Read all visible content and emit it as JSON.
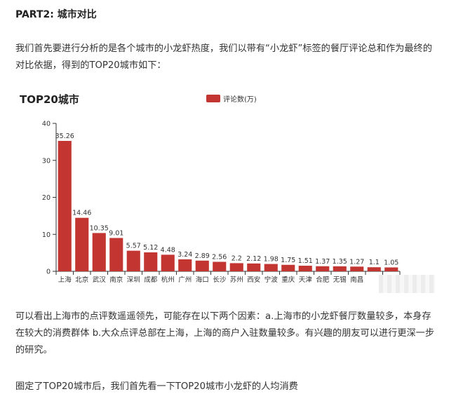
{
  "article": {
    "section_title": "PART2: 城市对比",
    "para1": "我们首先要进行分析的是各个城市的小龙虾热度，我们以带有“小龙虾”标签的餐厅评论总和作为最终的对比依据，得到的TOP20城市如下：",
    "para2": "可以看出上海市的点评数遥遥领先，可能存在以下两个因素：a.上海市的小龙虾餐厅数量较多，本身存在较大的消费群体 b.大众点评总部在上海，上海的商户入驻数量较多。有兴趣的朋友可以进行更深一步的研究。",
    "para3": "圈定了TOP20城市后，我们首先看一下TOP20城市小龙虾的人均消费"
  },
  "chart_data": {
    "type": "bar",
    "title": "TOP20城市",
    "categories": [
      "上海",
      "北京",
      "武汉",
      "南京",
      "深圳",
      "成都",
      "杭州",
      "广州",
      "海口",
      "长沙",
      "苏州",
      "西安",
      "宁波",
      "重庆",
      "天津",
      "合肥",
      "无锡",
      "南昌",
      "",
      ""
    ],
    "series": [
      {
        "name": "评论数(万)",
        "values": [
          35.26,
          14.46,
          10.35,
          9.01,
          5.57,
          5.12,
          4.48,
          3.24,
          2.89,
          2.56,
          2.2,
          2.12,
          1.98,
          1.75,
          1.51,
          1.37,
          1.35,
          1.27,
          1.1,
          1.05
        ],
        "color": "#c23531"
      }
    ],
    "ylim": [
      0,
      40
    ],
    "yticks": [
      0,
      10,
      20,
      30,
      40
    ],
    "legend_position": "top-center",
    "grid": false,
    "xlabel": "",
    "ylabel": ""
  }
}
